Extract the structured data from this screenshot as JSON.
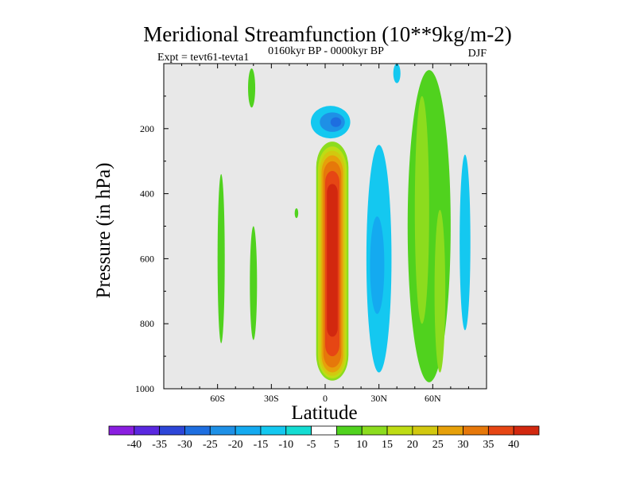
{
  "chart_data": {
    "type": "heatmap",
    "title": "Meridional Streamfunction (10**9kg/m-2)",
    "subtitle_left": "Expt = tevt61-tevta1",
    "subtitle_center": "0160kyr BP - 0000kyr BP",
    "subtitle_right": "DJF",
    "xlabel": "Latitude",
    "ylabel": "Pressure (in hPa)",
    "xlim": [
      -90,
      90
    ],
    "ylim": [
      0,
      1000
    ],
    "x_ticks": [
      {
        "value": -60,
        "label": "60S"
      },
      {
        "value": -30,
        "label": "30S"
      },
      {
        "value": 0,
        "label": "0"
      },
      {
        "value": 30,
        "label": "30N"
      },
      {
        "value": 60,
        "label": "60N"
      }
    ],
    "y_ticks": [
      {
        "value": 200,
        "label": "200"
      },
      {
        "value": 400,
        "label": "400"
      },
      {
        "value": 600,
        "label": "600"
      },
      {
        "value": 800,
        "label": "800"
      },
      {
        "value": 1000,
        "label": "1000"
      }
    ],
    "background_color": "#e8e8e8",
    "colorbar": {
      "labels": [
        "-40",
        "-35",
        "-30",
        "-25",
        "-20",
        "-15",
        "-10",
        "-5",
        "5",
        "10",
        "15",
        "20",
        "25",
        "30",
        "35",
        "40"
      ],
      "colors": [
        "#8a1ee0",
        "#5a28e0",
        "#2d46d8",
        "#1e6ee0",
        "#1e90e6",
        "#14aaf0",
        "#14c8f0",
        "#14dcd2",
        "#ffffff",
        "#50d21e",
        "#8cdc1e",
        "#bedc14",
        "#d2c80f",
        "#e6a00a",
        "#e6780a",
        "#e64614",
        "#d2280f"
      ]
    },
    "fields": [
      {
        "name": "equatorial-cell",
        "value": 35,
        "lat": 4,
        "lat_halfwidth": 7,
        "p_top": 270,
        "p_bottom": 960,
        "layers": [
          {
            "lw": 9,
            "top": 240,
            "bottom": 975,
            "color": "#8cdc1e"
          },
          {
            "lw": 8,
            "top": 255,
            "bottom": 968,
            "color": "#bedc14"
          },
          {
            "lw": 7,
            "top": 268,
            "bottom": 960,
            "color": "#d2c80f"
          },
          {
            "lw": 6,
            "top": 282,
            "bottom": 950,
            "color": "#e6a00a"
          },
          {
            "lw": 5,
            "top": 300,
            "bottom": 935,
            "color": "#e6780a"
          },
          {
            "lw": 4,
            "top": 330,
            "bottom": 900,
            "color": "#e64614"
          },
          {
            "lw": 3,
            "top": 370,
            "bottom": 840,
            "color": "#d2280f"
          }
        ]
      },
      {
        "name": "upper-negative-cell",
        "value": -25,
        "lat": 3,
        "p": 190,
        "blobs": [
          {
            "lat": 3,
            "p": 180,
            "rlat": 11,
            "rp": 50,
            "color": "#14c8f0"
          },
          {
            "lat": 4,
            "p": 180,
            "rlat": 7,
            "rp": 30,
            "color": "#1e90e6"
          },
          {
            "lat": 6,
            "p": 180,
            "rlat": 3,
            "rp": 15,
            "color": "#1e6ee0"
          }
        ]
      },
      {
        "name": "nh-subtropical-negative",
        "value": -10,
        "blobs": [
          {
            "lat": 30,
            "p": 600,
            "rlat": 7,
            "rp": 350,
            "color": "#14c8f0"
          },
          {
            "lat": 29,
            "p": 620,
            "rlat": 4,
            "rp": 150,
            "color": "#14aaf0"
          },
          {
            "lat": 40,
            "p": 30,
            "rlat": 2,
            "rp": 30,
            "color": "#14c8f0"
          }
        ]
      },
      {
        "name": "nh-midlat-positive",
        "value": 15,
        "blobs": [
          {
            "lat": 58,
            "p": 500,
            "rlat": 12,
            "rp": 480,
            "color": "#50d21e"
          },
          {
            "lat": 54,
            "p": 450,
            "rlat": 4,
            "rp": 350,
            "color": "#8cdc1e"
          },
          {
            "lat": 64,
            "p": 700,
            "rlat": 3,
            "rp": 250,
            "color": "#8cdc1e"
          },
          {
            "lat": 78,
            "p": 550,
            "rlat": 3,
            "rp": 270,
            "color": "#14c8f0"
          }
        ]
      },
      {
        "name": "sh-small-cells",
        "value": 5,
        "blobs": [
          {
            "lat": -58,
            "p": 600,
            "rlat": 2,
            "rp": 260,
            "color": "#50d21e"
          },
          {
            "lat": -41,
            "p": 75,
            "rlat": 2,
            "rp": 60,
            "color": "#50d21e"
          },
          {
            "lat": -40,
            "p": 675,
            "rlat": 2,
            "rp": 175,
            "color": "#50d21e"
          },
          {
            "lat": -16,
            "p": 460,
            "rlat": 1,
            "rp": 15,
            "color": "#50d21e"
          }
        ]
      }
    ]
  }
}
